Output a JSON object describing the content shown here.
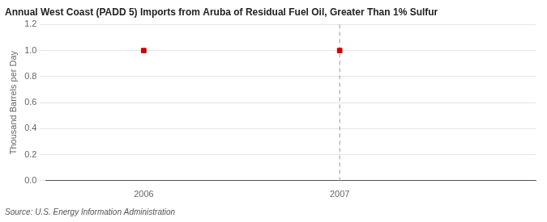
{
  "chart_data": {
    "type": "scatter",
    "title": "Annual West Coast (PADD 5) Imports from Aruba of Residual Fuel Oil, Greater Than 1% Sulfur",
    "annotation": "Source: U.S. Energy Information Administration",
    "ylabel": "Thousand Barrels per Day",
    "x": [
      2006,
      2007
    ],
    "values": [
      1.0,
      1.0
    ],
    "color": "#cc0000",
    "marker": "square",
    "xlim": [
      2005.5,
      2008.0
    ],
    "xticks": [
      2006,
      2007
    ],
    "ylim": [
      0.0,
      1.2
    ],
    "yticks": [
      {
        "value": 0.0,
        "label": "0.0"
      },
      0.2,
      0.4,
      0.6,
      0.8,
      {
        "value": 1.0,
        "label": "1.0"
      },
      1.2
    ],
    "vlines": [
      2007
    ],
    "grid": "y"
  }
}
